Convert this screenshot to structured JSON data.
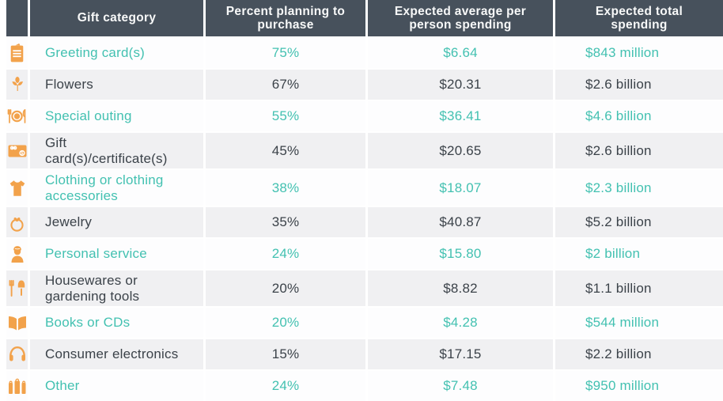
{
  "table": {
    "columns": [
      {
        "label": "Gift category"
      },
      {
        "label": "Percent planning to purchase"
      },
      {
        "label": "Expected average per person spending"
      },
      {
        "label": "Expected total spending"
      }
    ],
    "rows": [
      {
        "icon": "greeting-card-icon",
        "category": "Greeting card(s)",
        "percent": "75%",
        "avg": "$6.64",
        "total": "$843 million",
        "highlighted": true
      },
      {
        "icon": "flowers-icon",
        "category": "Flowers",
        "percent": "67%",
        "avg": "$20.31",
        "total": "$2.6 billion",
        "highlighted": false
      },
      {
        "icon": "special-outing-icon",
        "category": "Special outing",
        "percent": "55%",
        "avg": "$36.41",
        "total": "$4.6 billion",
        "highlighted": true
      },
      {
        "icon": "gift-card-icon",
        "category": "Gift card(s)/certificate(s)",
        "percent": "45%",
        "avg": "$20.65",
        "total": "$2.6 billion",
        "highlighted": false
      },
      {
        "icon": "clothing-icon",
        "category": "Clothing or clothing accessories",
        "percent": "38%",
        "avg": "$18.07",
        "total": "$2.3 billion",
        "highlighted": true
      },
      {
        "icon": "jewelry-ring-icon",
        "category": "Jewelry",
        "percent": "35%",
        "avg": "$40.87",
        "total": "$5.2 billion",
        "highlighted": false
      },
      {
        "icon": "personal-service-icon",
        "category": "Personal service",
        "percent": "24%",
        "avg": "$15.80",
        "total": "$2 billion",
        "highlighted": true
      },
      {
        "icon": "housewares-icon",
        "category": "Housewares or gardening tools",
        "percent": "20%",
        "avg": "$8.82",
        "total": "$1.1 billion",
        "highlighted": false
      },
      {
        "icon": "books-icon",
        "category": "Books or CDs",
        "percent": "20%",
        "avg": "$4.28",
        "total": "$544 million",
        "highlighted": true
      },
      {
        "icon": "headphones-icon",
        "category": "Consumer electronics",
        "percent": "15%",
        "avg": "$17.15",
        "total": "$2.2 billion",
        "highlighted": false
      },
      {
        "icon": "gift-bags-icon",
        "category": "Other",
        "percent": "24%",
        "avg": "$7.48",
        "total": "$950 million",
        "highlighted": true
      }
    ]
  },
  "colors": {
    "header_bg": "#47515C",
    "header_text": "#F8F9F9",
    "accent_teal": "#43C1B1",
    "text_dark": "#3B4249",
    "icon_orange": "#F2A24B",
    "row_bg": "#FDFDFE",
    "row_alt_bg": "#F0F0F2"
  },
  "chart_data": {
    "type": "table",
    "columns": [
      "Gift category",
      "Percent planning to purchase",
      "Expected average per person spending",
      "Expected total spending"
    ],
    "rows": [
      [
        "Greeting card(s)",
        "75%",
        "$6.64",
        "$843 million"
      ],
      [
        "Flowers",
        "67%",
        "$20.31",
        "$2.6 billion"
      ],
      [
        "Special outing",
        "55%",
        "$36.41",
        "$4.6 billion"
      ],
      [
        "Gift card(s)/certificate(s)",
        "45%",
        "$20.65",
        "$2.6 billion"
      ],
      [
        "Clothing or clothing accessories",
        "38%",
        "$18.07",
        "$2.3 billion"
      ],
      [
        "Jewelry",
        "35%",
        "$40.87",
        "$5.2 billion"
      ],
      [
        "Personal service",
        "24%",
        "$15.80",
        "$2 billion"
      ],
      [
        "Housewares or gardening tools",
        "20%",
        "$8.82",
        "$1.1 billion"
      ],
      [
        "Books or CDs",
        "20%",
        "$4.28",
        "$544 million"
      ],
      [
        "Consumer electronics",
        "15%",
        "$17.15",
        "$2.2 billion"
      ],
      [
        "Other",
        "24%",
        "$7.48",
        "$950 million"
      ]
    ]
  }
}
